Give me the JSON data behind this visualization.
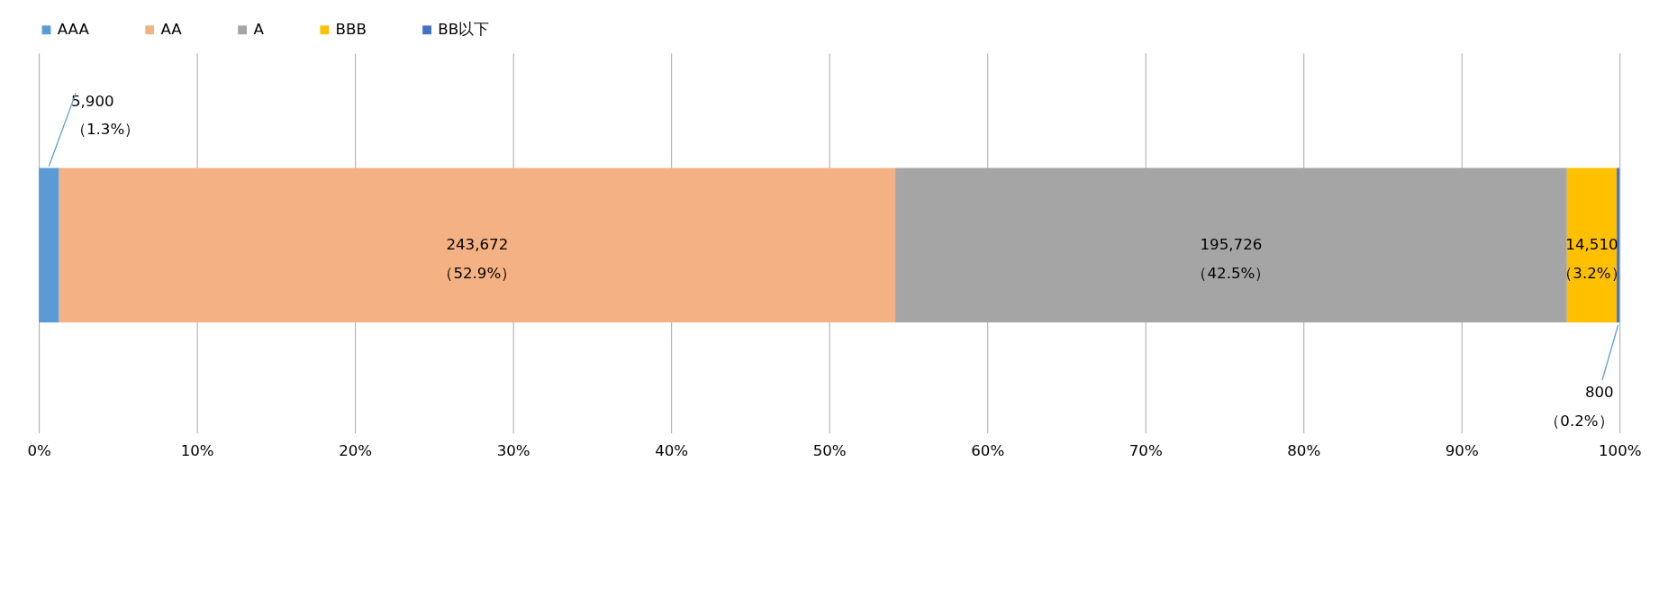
{
  "chart_data": {
    "type": "bar",
    "orientation": "horizontal",
    "stacked": true,
    "categories": [
      null
    ],
    "series": [
      {
        "name": "AAA",
        "color": "#5b9bd5",
        "values": [
          1.28
        ],
        "value_labels": [
          "5,900\n（1.3%）"
        ]
      },
      {
        "name": "AA",
        "color": "#f4b183",
        "values": [
          52.9
        ],
        "value_labels": [
          "243,672\n（52.9%）"
        ]
      },
      {
        "name": "A",
        "color": "#a5a5a5",
        "values": [
          42.49
        ],
        "value_labels": [
          "195,726\n（42.5%）"
        ]
      },
      {
        "name": "BBB",
        "color": "#ffc000",
        "values": [
          3.15
        ],
        "value_labels": [
          "14,510\n（3.2%）"
        ]
      },
      {
        "name": "BB以下",
        "color": "#4472c4",
        "values": [
          0.17
        ],
        "value_labels": [
          "800\n（0.2%）"
        ]
      }
    ],
    "xlim": [
      0,
      100
    ],
    "xticks": [
      {
        "value": 0,
        "label": "0%"
      },
      {
        "value": 10,
        "label": "10%"
      },
      {
        "value": 20,
        "label": "20%"
      },
      {
        "value": 30,
        "label": "30%"
      },
      {
        "value": 40,
        "label": "40%"
      },
      {
        "value": 50,
        "label": "50%"
      },
      {
        "value": 60,
        "label": "60%"
      },
      {
        "value": 70,
        "label": "70%"
      },
      {
        "value": 80,
        "label": "80%"
      },
      {
        "value": 90,
        "label": "90%"
      },
      {
        "value": 100,
        "label": "100%"
      }
    ],
    "grid": "x",
    "legend": "top"
  }
}
